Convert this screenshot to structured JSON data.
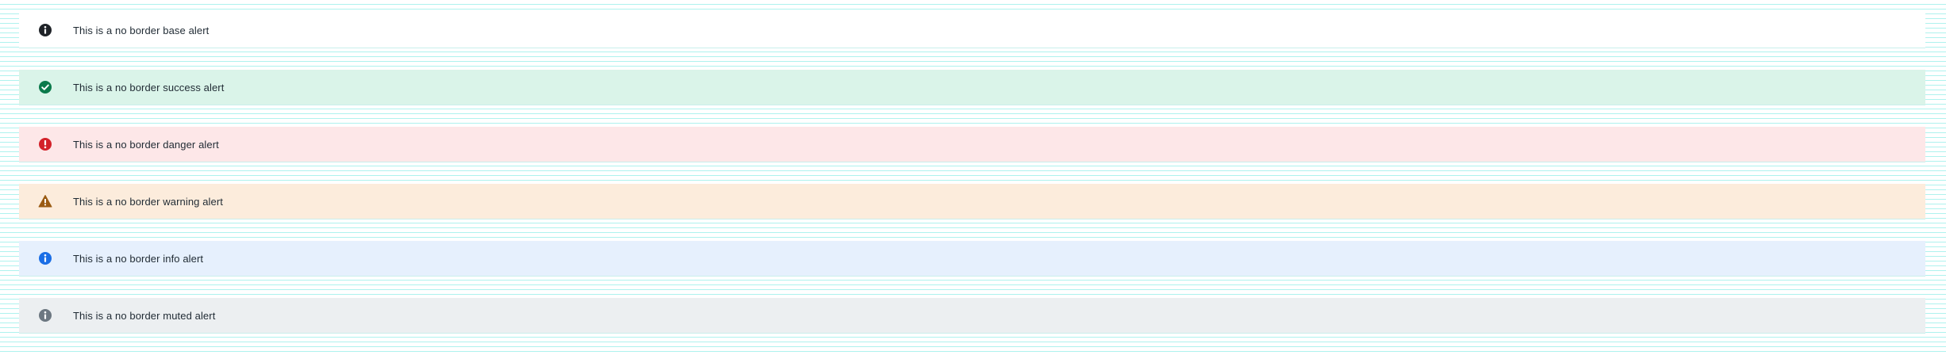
{
  "alerts": [
    {
      "variant": "base",
      "icon": "info-icon",
      "message": "This is a no border base alert",
      "background": "#ffffff",
      "icon_color": "#1f2328"
    },
    {
      "variant": "success",
      "icon": "check-circle-icon",
      "message": "This is a no border success alert",
      "background": "#daf4e9",
      "icon_color": "#0b7a4b"
    },
    {
      "variant": "danger",
      "icon": "exclamation-circle-icon",
      "message": "This is a no border danger alert",
      "background": "#fde7e8",
      "icon_color": "#d3222a"
    },
    {
      "variant": "warning",
      "icon": "warning-triangle-icon",
      "message": "This is a no border warning alert",
      "background": "#fcecdc",
      "icon_color": "#9a5b13"
    },
    {
      "variant": "info",
      "icon": "info-icon",
      "message": "This is a no border info alert",
      "background": "#e6f0fd",
      "icon_color": "#1a6ee6"
    },
    {
      "variant": "muted",
      "icon": "info-icon",
      "message": "This is a no border muted alert",
      "background": "#eceff1",
      "icon_color": "#6c7781"
    }
  ]
}
